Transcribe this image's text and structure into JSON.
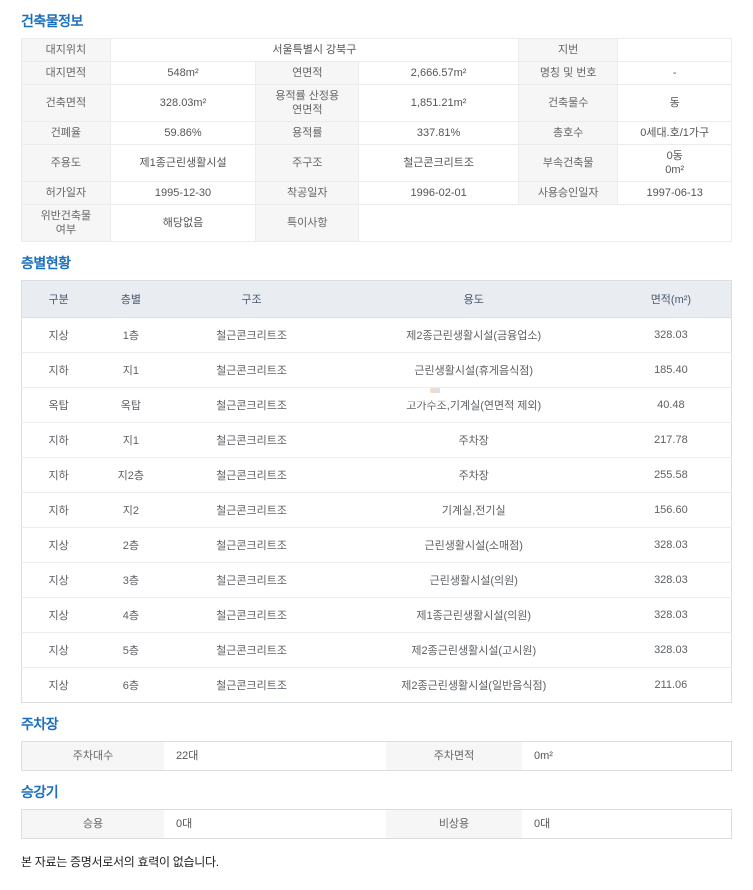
{
  "colors": {
    "title_blue": "#1b6fbe",
    "label_bg": "#f6f6f7",
    "floor_header_bg": "#e9edf2",
    "table_border": "#d9dee3",
    "row_border": "#e9edf0",
    "text": "#555555"
  },
  "building_info": {
    "title": "건축물정보",
    "rows": [
      [
        {
          "k": "l",
          "t": "대지위치"
        },
        {
          "k": "v",
          "t": "서울특별시 강북구",
          "s": 3
        },
        {
          "k": "l",
          "t": "지번"
        },
        {
          "k": "v",
          "t": ""
        }
      ],
      [
        {
          "k": "l",
          "t": "대지면적"
        },
        {
          "k": "v",
          "t": "548m²"
        },
        {
          "k": "l",
          "t": "연면적"
        },
        {
          "k": "v",
          "t": "2,666.57m²"
        },
        {
          "k": "l",
          "t": "명칭 및 번호"
        },
        {
          "k": "v",
          "t": "-"
        }
      ],
      [
        {
          "k": "l",
          "t": "건축면적"
        },
        {
          "k": "v",
          "t": "328.03m²"
        },
        {
          "k": "l",
          "t": "용적률 산정용\n연면적"
        },
        {
          "k": "v",
          "t": "1,851.21m²"
        },
        {
          "k": "l",
          "t": "건축물수"
        },
        {
          "k": "v",
          "t": "동"
        }
      ],
      [
        {
          "k": "l",
          "t": "건폐율"
        },
        {
          "k": "v",
          "t": "59.86%"
        },
        {
          "k": "l",
          "t": "용적률"
        },
        {
          "k": "v",
          "t": "337.81%"
        },
        {
          "k": "l",
          "t": "총호수"
        },
        {
          "k": "v",
          "t": "0세대.호/1가구"
        }
      ],
      [
        {
          "k": "l",
          "t": "주용도"
        },
        {
          "k": "v",
          "t": "제1종근린생활시설"
        },
        {
          "k": "l",
          "t": "주구조"
        },
        {
          "k": "v",
          "t": "철근콘크리트조"
        },
        {
          "k": "l",
          "t": "부속건축물"
        },
        {
          "k": "v",
          "t": "0동\n0m²"
        }
      ],
      [
        {
          "k": "l",
          "t": "허가일자"
        },
        {
          "k": "v",
          "t": "1995-12-30"
        },
        {
          "k": "l",
          "t": "착공일자"
        },
        {
          "k": "v",
          "t": "1996-02-01"
        },
        {
          "k": "l",
          "t": "사용승인일자"
        },
        {
          "k": "v",
          "t": "1997-06-13"
        }
      ],
      [
        {
          "k": "l",
          "t": "위반건축물\n여부"
        },
        {
          "k": "v",
          "t": "해당없음"
        },
        {
          "k": "l",
          "t": "특이사항"
        },
        {
          "k": "v",
          "t": "",
          "s": 3
        }
      ]
    ]
  },
  "floor_status": {
    "title": "층별현황",
    "columns": [
      "구분",
      "층별",
      "구조",
      "용도",
      "면적(m²)"
    ],
    "rows": [
      [
        "지상",
        "1층",
        "철근콘크리트조",
        "제2종근린생활시설(금융업소)",
        "328.03"
      ],
      [
        "지하",
        "지1",
        "철근콘크리트조",
        "근린생활시설(휴게음식점)",
        "185.40"
      ],
      [
        "옥탑",
        "옥탑",
        "철근콘크리트조",
        "고가수조,기계실(연면적 제외)",
        "40.48"
      ],
      [
        "지하",
        "지1",
        "철근콘크리트조",
        "주차장",
        "217.78"
      ],
      [
        "지하",
        "지2층",
        "철근콘크리트조",
        "주차장",
        "255.58"
      ],
      [
        "지하",
        "지2",
        "철근콘크리트조",
        "기계실,전기실",
        "156.60"
      ],
      [
        "지상",
        "2층",
        "철근콘크리트조",
        "근린생활시설(소매점)",
        "328.03"
      ],
      [
        "지상",
        "3층",
        "철근콘크리트조",
        "근린생활시설(의원)",
        "328.03"
      ],
      [
        "지상",
        "4층",
        "철근콘크리트조",
        "제1종근린생활시설(의원)",
        "328.03"
      ],
      [
        "지상",
        "5층",
        "철근콘크리트조",
        "제2종근린생활시설(고시원)",
        "328.03"
      ],
      [
        "지상",
        "6층",
        "철근콘크리트조",
        "제2종근린생활시설(일반음식점)",
        "211.06"
      ]
    ]
  },
  "parking": {
    "title": "주차장",
    "fields": [
      {
        "label": "주차대수",
        "value": "22대"
      },
      {
        "label": "주차면적",
        "value": "0m²"
      }
    ]
  },
  "elevator": {
    "title": "승강기",
    "fields": [
      {
        "label": "승용",
        "value": "0대"
      },
      {
        "label": "비상용",
        "value": "0대"
      }
    ]
  },
  "footer": {
    "notice": "본 자료는 증명서로서의 효력이 없습니다."
  }
}
